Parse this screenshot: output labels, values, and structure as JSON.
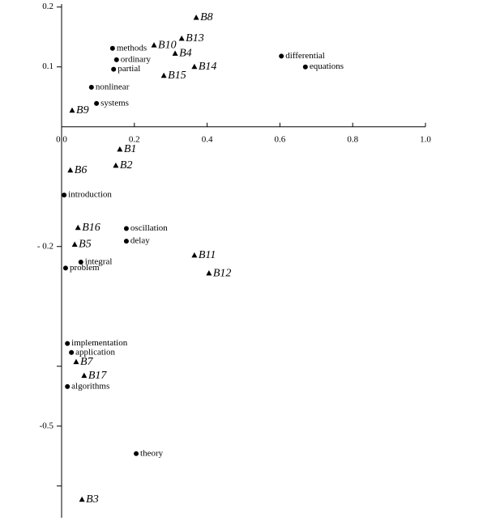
{
  "chart_data": {
    "type": "scatter",
    "xlim": [
      0,
      1.0
    ],
    "ylim": [
      -0.653,
      0.205
    ],
    "xticks": [
      {
        "value": 0,
        "label": "0.0"
      },
      0.2,
      0.4,
      0.6,
      0.8,
      {
        "value": 1.0,
        "label": "1.0"
      }
    ],
    "yticks": [
      0.2,
      0.1,
      {
        "value": -0.2,
        "label": "- 0.2"
      },
      -0.5
    ],
    "yminor": [
      -0.4,
      -0.6
    ],
    "series": [
      {
        "marker": "triangle",
        "color": "#000000",
        "label_style": "italic",
        "labels": [
          "B8",
          "B10",
          "B13",
          "B4",
          "B14",
          "B15",
          "B9",
          "B1",
          "B2",
          "B6",
          "B16",
          "B5",
          "B11",
          "B12",
          "B7",
          "B17",
          "B3"
        ],
        "x": [
          0.37,
          0.254,
          0.33,
          0.312,
          0.365,
          0.281,
          0.029,
          0.16,
          0.149,
          0.024,
          0.045,
          0.036,
          0.365,
          0.405,
          0.04,
          0.062,
          0.056
        ],
        "values": [
          0.182,
          0.136,
          0.147,
          0.122,
          0.1,
          0.085,
          0.027,
          -0.038,
          -0.065,
          -0.073,
          -0.169,
          -0.197,
          -0.215,
          -0.245,
          -0.393,
          -0.416,
          -0.623
        ]
      },
      {
        "marker": "circle",
        "color": "#000000",
        "label_style": "normal",
        "labels": [
          "methods",
          "ordinary",
          "partial",
          "differential",
          "equations",
          "nonlinear",
          "systems",
          "introduction",
          "oscillation",
          "delay",
          "integral",
          "problem",
          "implementation",
          "application",
          "algorithms",
          "theory"
        ],
        "x": [
          0.14,
          0.151,
          0.143,
          0.604,
          0.67,
          0.082,
          0.096,
          0.007,
          0.178,
          0.178,
          0.053,
          0.011,
          0.016,
          0.027,
          0.016,
          0.205
        ],
        "values": [
          0.131,
          0.112,
          0.096,
          0.118,
          0.1,
          0.066,
          0.039,
          -0.114,
          -0.17,
          -0.191,
          -0.226,
          -0.236,
          -0.362,
          -0.377,
          -0.434,
          -0.546
        ]
      }
    ]
  }
}
